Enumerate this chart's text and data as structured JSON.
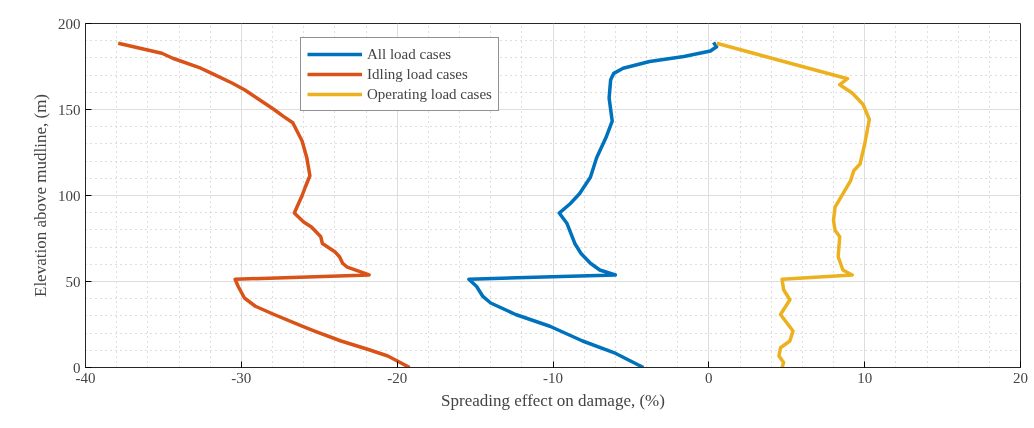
{
  "chart_data": {
    "type": "line",
    "xlabel": "Spreading effect on damage, (%)",
    "ylabel": "Elevation above mudline, (m)",
    "xlim": [
      -40,
      20
    ],
    "xticks": [
      -40,
      -30,
      -20,
      -10,
      0,
      10,
      20
    ],
    "ylim": [
      0,
      200
    ],
    "yticks": [
      0,
      50,
      100,
      150,
      200
    ],
    "grid": true,
    "legend": "top",
    "line_style": "solid",
    "marker": "none",
    "series": [
      {
        "name": "All load cases",
        "color": "#0072bd",
        "x": [
          0.3,
          0.5,
          0.1,
          -1.6,
          -3.8,
          -5.5,
          -6.1,
          -6.3,
          -6.4,
          -6.2,
          -6.6,
          -7.2,
          -7.6,
          -8.3,
          -8.9,
          -9.6,
          -9.1,
          -8.6,
          -8.2,
          -7.6,
          -7.0,
          -6.0,
          -15.4,
          -14.9,
          -14.5,
          -14.0,
          -12.4,
          -10.2,
          -8.1,
          -6.1,
          -4.2
        ],
        "values": [
          189,
          186.5,
          184,
          180.8,
          177.9,
          174,
          171,
          167.3,
          156.7,
          143.3,
          133.7,
          122,
          110.6,
          101,
          95.2,
          89.8,
          83.7,
          72.1,
          66.3,
          60.6,
          56.7,
          53.8,
          51.3,
          47.1,
          41.3,
          37.5,
          30.8,
          24,
          15.4,
          8.7,
          0
        ]
      },
      {
        "name": "Idling load cases",
        "color": "#d95319",
        "x": [
          -37.9,
          -35.1,
          -34.4,
          -32.6,
          -31.9,
          -30.6,
          -29.8,
          -27.9,
          -27.3,
          -26.7,
          -26.1,
          -25.8,
          -25.6,
          -25.9,
          -26.1,
          -26.6,
          -26.0,
          -25.5,
          -24.9,
          -24.8,
          -24.0,
          -23.7,
          -23.5,
          -23.2,
          -21.8,
          -30.4,
          -30.2,
          -29.8,
          -29.1,
          -27.9,
          -26.1,
          -25.3,
          -23.6,
          -21.9,
          -20.6,
          -20.2,
          -19.2
        ],
        "values": [
          188.5,
          182.7,
          179.8,
          174,
          171,
          165.4,
          161.5,
          150,
          146,
          142.3,
          131.7,
          122,
          111.5,
          104.8,
          100,
          89.8,
          84.6,
          81.7,
          76,
          72.1,
          67.3,
          64.4,
          60.6,
          58.3,
          53.8,
          51.3,
          47.1,
          40.4,
          35.6,
          30.8,
          24,
          21.2,
          15.4,
          10.6,
          6.7,
          4.8,
          0
        ]
      },
      {
        "name": "Operating load cases",
        "color": "#edb120",
        "x": [
          0.5,
          8.9,
          8.4,
          9.2,
          9.9,
          10.3,
          10.0,
          9.7,
          9.3,
          9.1,
          8.6,
          8.1,
          8.0,
          8.1,
          8.4,
          8.3,
          8.6,
          9.2,
          4.7,
          4.8,
          5.2,
          4.6,
          5.4,
          5.2,
          4.6,
          4.5,
          4.8,
          4.7
        ],
        "values": [
          188.5,
          167.9,
          164.4,
          159.6,
          152.9,
          144.2,
          129.8,
          118.3,
          114.4,
          108.7,
          101,
          93.3,
          85.6,
          79.8,
          76,
          64.4,
          56.7,
          53.8,
          51.3,
          45.2,
          39.4,
          30.8,
          21.2,
          15.4,
          11.5,
          6.7,
          2.9,
          0
        ]
      }
    ]
  }
}
